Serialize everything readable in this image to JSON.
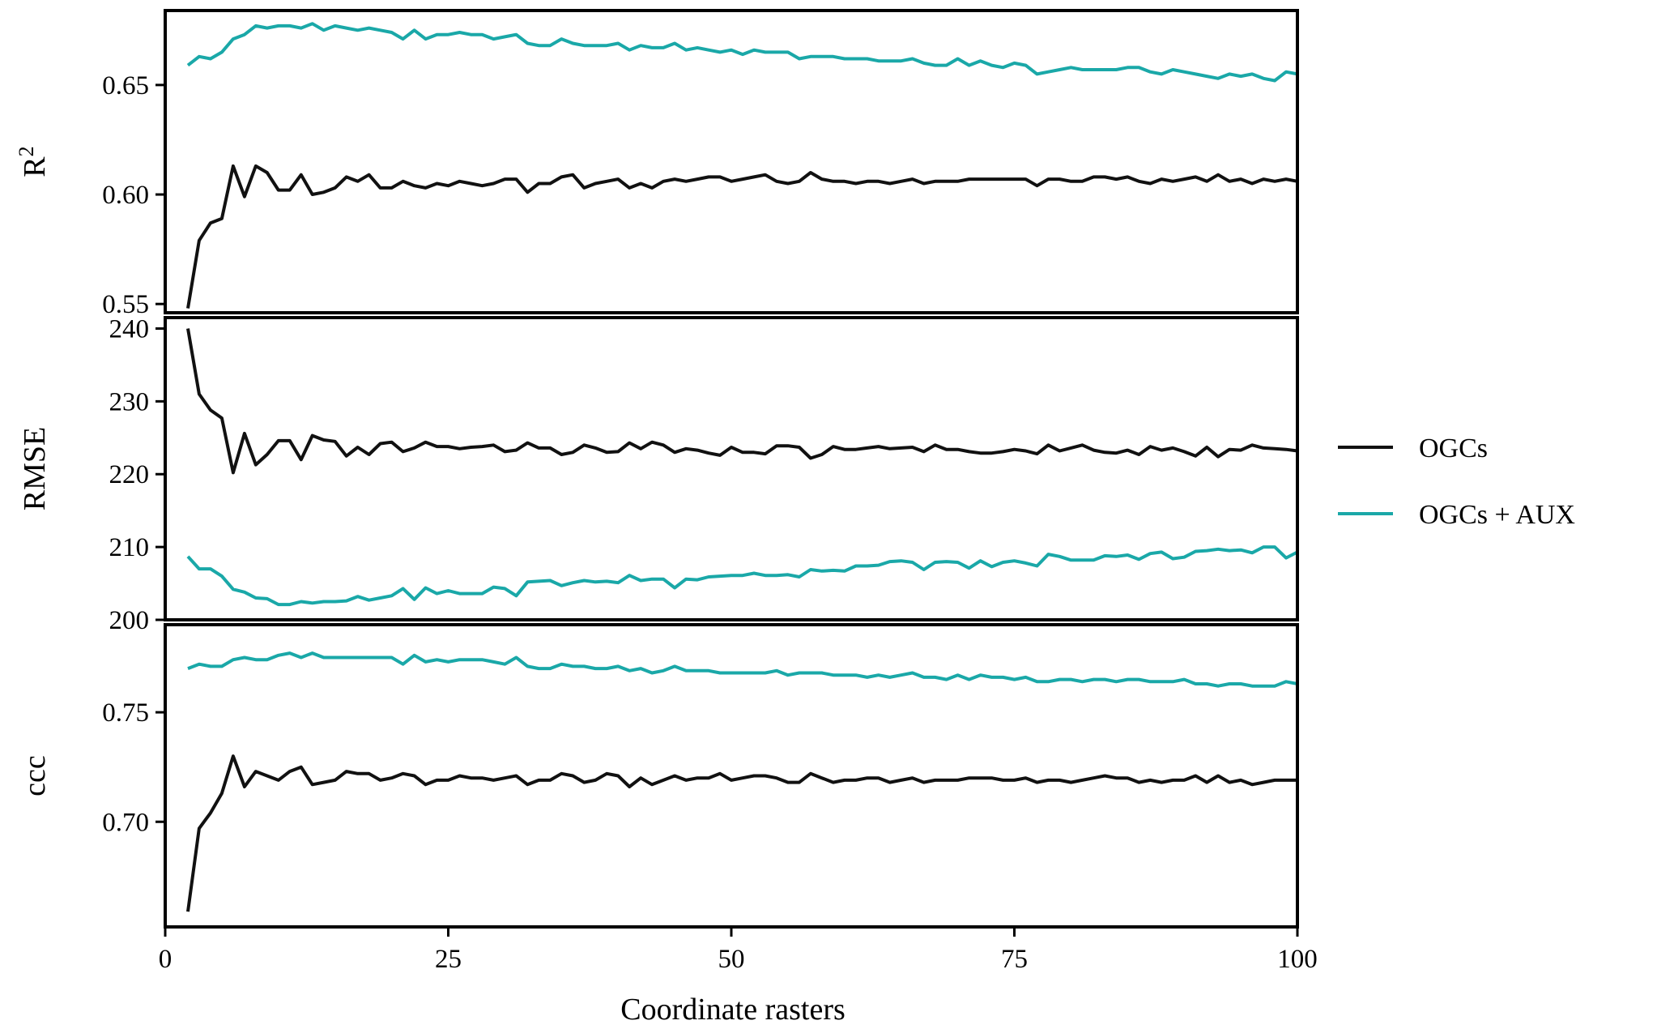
{
  "chart_data": {
    "type": "line",
    "xlabel": "Coordinate rasters",
    "xlim": [
      0,
      100
    ],
    "xticks": [
      0,
      25,
      50,
      75,
      100
    ],
    "x": [
      2,
      3,
      4,
      5,
      6,
      7,
      8,
      9,
      10,
      11,
      12,
      13,
      14,
      15,
      16,
      17,
      18,
      19,
      20,
      21,
      22,
      23,
      24,
      25,
      26,
      27,
      28,
      29,
      30,
      31,
      32,
      33,
      34,
      35,
      36,
      37,
      38,
      39,
      40,
      41,
      42,
      43,
      44,
      45,
      46,
      47,
      48,
      49,
      50,
      51,
      52,
      53,
      54,
      55,
      56,
      57,
      58,
      59,
      60,
      61,
      62,
      63,
      64,
      65,
      66,
      67,
      68,
      69,
      70,
      71,
      72,
      73,
      74,
      75,
      76,
      77,
      78,
      79,
      80,
      81,
      82,
      83,
      84,
      85,
      86,
      87,
      88,
      89,
      90,
      91,
      92,
      93,
      94,
      95,
      96,
      97,
      98,
      99,
      100
    ],
    "colors": {
      "OGCs": "#111111",
      "OGCs + AUX": "#1aa8a8"
    },
    "legend": {
      "placement": "right",
      "entries": [
        "OGCs",
        "OGCs + AUX"
      ]
    },
    "panels": [
      {
        "ylabel": "R",
        "ylabel_sup": "2",
        "ylim": [
          0.546,
          0.684
        ],
        "yticks": [
          0.55,
          0.6,
          0.65
        ],
        "ytick_labels": [
          "0.55",
          "0.60",
          "0.65"
        ],
        "series": [
          {
            "name": "OGCs",
            "values": [
              0.548,
              0.579,
              0.587,
              0.589,
              0.613,
              0.599,
              0.613,
              0.61,
              0.602,
              0.602,
              0.609,
              0.6,
              0.601,
              0.603,
              0.608,
              0.606,
              0.609,
              0.603,
              0.603,
              0.606,
              0.604,
              0.603,
              0.605,
              0.604,
              0.606,
              0.605,
              0.604,
              0.605,
              0.607,
              0.607,
              0.601,
              0.605,
              0.605,
              0.608,
              0.609,
              0.603,
              0.605,
              0.606,
              0.607,
              0.603,
              0.605,
              0.603,
              0.606,
              0.607,
              0.606,
              0.607,
              0.608,
              0.608,
              0.606,
              0.607,
              0.608,
              0.609,
              0.606,
              0.605,
              0.606,
              0.61,
              0.607,
              0.606,
              0.606,
              0.605,
              0.606,
              0.606,
              0.605,
              0.606,
              0.607,
              0.605,
              0.606,
              0.606,
              0.606,
              0.607,
              0.607,
              0.607,
              0.607,
              0.607,
              0.607,
              0.604,
              0.607,
              0.607,
              0.606,
              0.606,
              0.608,
              0.608,
              0.607,
              0.608,
              0.606,
              0.605,
              0.607,
              0.606,
              0.607,
              0.608,
              0.606,
              0.609,
              0.606,
              0.607,
              0.605,
              0.607,
              0.606,
              0.607,
              0.606
            ]
          },
          {
            "name": "OGCs + AUX",
            "values": [
              0.659,
              0.663,
              0.662,
              0.665,
              0.671,
              0.673,
              0.677,
              0.676,
              0.677,
              0.677,
              0.676,
              0.678,
              0.675,
              0.677,
              0.676,
              0.675,
              0.676,
              0.675,
              0.674,
              0.671,
              0.675,
              0.671,
              0.673,
              0.673,
              0.674,
              0.673,
              0.673,
              0.671,
              0.672,
              0.673,
              0.669,
              0.668,
              0.668,
              0.671,
              0.669,
              0.668,
              0.668,
              0.668,
              0.669,
              0.666,
              0.668,
              0.667,
              0.667,
              0.669,
              0.666,
              0.667,
              0.666,
              0.665,
              0.666,
              0.664,
              0.666,
              0.665,
              0.665,
              0.665,
              0.662,
              0.663,
              0.663,
              0.663,
              0.662,
              0.662,
              0.662,
              0.661,
              0.661,
              0.661,
              0.662,
              0.66,
              0.659,
              0.659,
              0.662,
              0.659,
              0.661,
              0.659,
              0.658,
              0.66,
              0.659,
              0.655,
              0.656,
              0.657,
              0.658,
              0.657,
              0.657,
              0.657,
              0.657,
              0.658,
              0.658,
              0.656,
              0.655,
              0.657,
              0.656,
              0.655,
              0.654,
              0.653,
              0.655,
              0.654,
              0.655,
              0.653,
              0.652,
              0.656,
              0.655
            ]
          }
        ]
      },
      {
        "ylabel": "RMSE",
        "ylim": [
          200,
          241.5
        ],
        "yticks": [
          200,
          210,
          220,
          230,
          240
        ],
        "ytick_labels": [
          "200",
          "210",
          "220",
          "230",
          "240"
        ],
        "series": [
          {
            "name": "OGCs",
            "values": [
              240.0,
              231.0,
              228.8,
              227.7,
              220.2,
              225.6,
              221.3,
              222.7,
              224.6,
              224.6,
              222.0,
              225.3,
              224.7,
              224.5,
              222.5,
              223.7,
              222.7,
              224.2,
              224.4,
              223.1,
              223.6,
              224.4,
              223.8,
              223.8,
              223.5,
              223.7,
              223.8,
              224.0,
              223.1,
              223.3,
              224.3,
              223.6,
              223.6,
              222.7,
              223.0,
              224.0,
              223.6,
              223.0,
              223.1,
              224.3,
              223.5,
              224.4,
              224.0,
              223.0,
              223.5,
              223.3,
              222.9,
              222.6,
              223.7,
              223.0,
              223.0,
              222.8,
              223.9,
              223.9,
              223.7,
              222.2,
              222.7,
              223.8,
              223.4,
              223.4,
              223.6,
              223.8,
              223.5,
              223.6,
              223.7,
              223.1,
              224.0,
              223.4,
              223.4,
              223.1,
              222.9,
              222.9,
              223.1,
              223.4,
              223.2,
              222.8,
              224.0,
              223.2,
              223.6,
              224.0,
              223.3,
              223.0,
              222.9,
              223.3,
              222.7,
              223.8,
              223.3,
              223.6,
              223.1,
              222.5,
              223.7,
              222.4,
              223.4,
              223.3,
              224.0,
              223.6,
              223.5,
              223.4,
              223.2
            ]
          },
          {
            "name": "OGCs + AUX",
            "values": [
              208.7,
              207.0,
              207.0,
              206.0,
              204.2,
              203.8,
              203.0,
              202.9,
              202.1,
              202.1,
              202.5,
              202.3,
              202.5,
              202.5,
              202.6,
              203.2,
              202.7,
              203.0,
              203.3,
              204.3,
              202.8,
              204.4,
              203.6,
              204.0,
              203.6,
              203.6,
              203.6,
              204.5,
              204.3,
              203.3,
              205.2,
              205.3,
              205.4,
              204.7,
              205.1,
              205.4,
              205.2,
              205.3,
              205.1,
              206.1,
              205.4,
              205.6,
              205.6,
              204.4,
              205.6,
              205.5,
              205.9,
              206.0,
              206.1,
              206.1,
              206.4,
              206.1,
              206.1,
              206.2,
              205.9,
              206.9,
              206.7,
              206.8,
              206.7,
              207.4,
              207.4,
              207.5,
              208.0,
              208.1,
              207.9,
              206.9,
              207.9,
              208.0,
              207.9,
              207.1,
              208.1,
              207.3,
              207.9,
              208.1,
              207.8,
              207.4,
              209.0,
              208.7,
              208.2,
              208.2,
              208.2,
              208.8,
              208.7,
              208.9,
              208.3,
              209.1,
              209.3,
              208.4,
              208.6,
              209.4,
              209.5,
              209.7,
              209.5,
              209.6,
              209.2,
              210.0,
              210.0,
              208.5,
              209.3
            ]
          }
        ]
      },
      {
        "ylabel": "ccc",
        "ylim": [
          0.652,
          0.79
        ],
        "yticks": [
          0.7,
          0.75
        ],
        "ytick_labels": [
          "0.70",
          "0.75"
        ],
        "series": [
          {
            "name": "OGCs",
            "values": [
              0.659,
              0.697,
              0.704,
              0.713,
              0.73,
              0.716,
              0.723,
              0.721,
              0.719,
              0.723,
              0.725,
              0.717,
              0.718,
              0.719,
              0.723,
              0.722,
              0.722,
              0.719,
              0.72,
              0.722,
              0.721,
              0.717,
              0.719,
              0.719,
              0.721,
              0.72,
              0.72,
              0.719,
              0.72,
              0.721,
              0.717,
              0.719,
              0.719,
              0.722,
              0.721,
              0.718,
              0.719,
              0.722,
              0.721,
              0.716,
              0.72,
              0.717,
              0.719,
              0.721,
              0.719,
              0.72,
              0.72,
              0.722,
              0.719,
              0.72,
              0.721,
              0.721,
              0.72,
              0.718,
              0.718,
              0.722,
              0.72,
              0.718,
              0.719,
              0.719,
              0.72,
              0.72,
              0.718,
              0.719,
              0.72,
              0.718,
              0.719,
              0.719,
              0.719,
              0.72,
              0.72,
              0.72,
              0.719,
              0.719,
              0.72,
              0.718,
              0.719,
              0.719,
              0.718,
              0.719,
              0.72,
              0.721,
              0.72,
              0.72,
              0.718,
              0.719,
              0.718,
              0.719,
              0.719,
              0.721,
              0.718,
              0.721,
              0.718,
              0.719,
              0.717,
              0.718,
              0.719,
              0.719,
              0.719
            ]
          },
          {
            "name": "OGCs + AUX",
            "values": [
              0.77,
              0.772,
              0.771,
              0.771,
              0.774,
              0.775,
              0.774,
              0.774,
              0.776,
              0.777,
              0.775,
              0.777,
              0.775,
              0.775,
              0.775,
              0.775,
              0.775,
              0.775,
              0.775,
              0.772,
              0.776,
              0.773,
              0.774,
              0.773,
              0.774,
              0.774,
              0.774,
              0.773,
              0.772,
              0.775,
              0.771,
              0.77,
              0.77,
              0.772,
              0.771,
              0.771,
              0.77,
              0.77,
              0.771,
              0.769,
              0.77,
              0.768,
              0.769,
              0.771,
              0.769,
              0.769,
              0.769,
              0.768,
              0.768,
              0.768,
              0.768,
              0.768,
              0.769,
              0.767,
              0.768,
              0.768,
              0.768,
              0.767,
              0.767,
              0.767,
              0.766,
              0.767,
              0.766,
              0.767,
              0.768,
              0.766,
              0.766,
              0.765,
              0.767,
              0.765,
              0.767,
              0.766,
              0.766,
              0.765,
              0.766,
              0.764,
              0.764,
              0.765,
              0.765,
              0.764,
              0.765,
              0.765,
              0.764,
              0.765,
              0.765,
              0.764,
              0.764,
              0.764,
              0.765,
              0.763,
              0.763,
              0.762,
              0.763,
              0.763,
              0.762,
              0.762,
              0.762,
              0.764,
              0.763
            ]
          }
        ]
      }
    ]
  }
}
